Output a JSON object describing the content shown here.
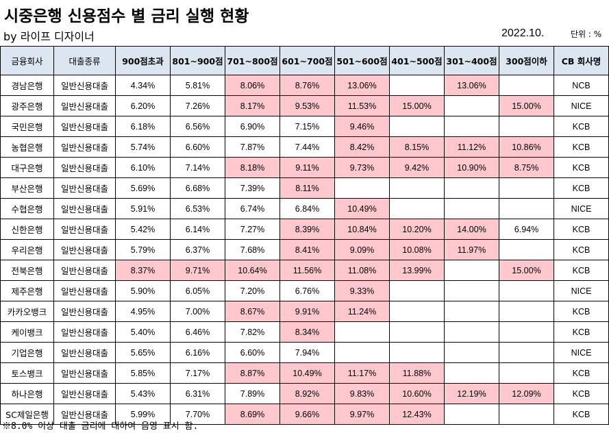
{
  "title": "시중은행 신용점수 별 금리 실행 현황",
  "byline": "by 라이프 디자이너",
  "date": "2022.10.",
  "unit": "단위 : %",
  "highlight_color": "#ffc7ce",
  "header_color": "#dce6f0",
  "columns": [
    "금융회사",
    "대출종류",
    "900점초과",
    "801~900점",
    "701~800점",
    "601~700점",
    "501~600점",
    "401~500점",
    "301~400점",
    "300점이하",
    "CB 회사명"
  ],
  "rows": [
    {
      "bank": "경남은행",
      "type": "일반신용대출",
      "rates": [
        "4.34%",
        "5.81%",
        "8.06%",
        "8.76%",
        "13.06%",
        "",
        "13.06%",
        ""
      ],
      "cb": "NCB"
    },
    {
      "bank": "광주은행",
      "type": "일반신용대출",
      "rates": [
        "6.20%",
        "7.26%",
        "8.17%",
        "9.53%",
        "11.53%",
        "15.00%",
        "",
        "15.00%"
      ],
      "cb": "NICE"
    },
    {
      "bank": "국민은행",
      "type": "일반신용대출",
      "rates": [
        "6.18%",
        "6.56%",
        "6.90%",
        "7.15%",
        "9.46%",
        "",
        "",
        ""
      ],
      "cb": "KCB"
    },
    {
      "bank": "농협은행",
      "type": "일반신용대출",
      "rates": [
        "5.74%",
        "6.60%",
        "7.87%",
        "7.44%",
        "8.42%",
        "8.15%",
        "11.12%",
        "10.86%"
      ],
      "cb": "KCB"
    },
    {
      "bank": "대구은행",
      "type": "일반신용대출",
      "rates": [
        "6.10%",
        "7.14%",
        "8.18%",
        "9.11%",
        "9.73%",
        "9.42%",
        "10.90%",
        "8.75%"
      ],
      "cb": "KCB"
    },
    {
      "bank": "부산은행",
      "type": "일반신용대출",
      "rates": [
        "5.69%",
        "6.68%",
        "7.39%",
        "8.11%",
        "",
        "",
        "",
        ""
      ],
      "cb": "KCB"
    },
    {
      "bank": "수협은행",
      "type": "일반신용대출",
      "rates": [
        "5.91%",
        "6.53%",
        "6.74%",
        "6.84%",
        "10.49%",
        "",
        "",
        ""
      ],
      "cb": "NICE"
    },
    {
      "bank": "신한은행",
      "type": "일반신용대출",
      "rates": [
        "5.42%",
        "6.14%",
        "7.27%",
        "8.39%",
        "10.84%",
        "10.20%",
        "14.00%",
        "6.94%"
      ],
      "cb": "KCB"
    },
    {
      "bank": "우리은행",
      "type": "일반신용대출",
      "rates": [
        "5.79%",
        "6.37%",
        "7.68%",
        "8.41%",
        "9.09%",
        "10.08%",
        "11.97%",
        ""
      ],
      "cb": "KCB"
    },
    {
      "bank": "전북은행",
      "type": "일반신용대출",
      "rates": [
        "8.37%",
        "9.71%",
        "10.64%",
        "11.56%",
        "11.08%",
        "13.99%",
        "",
        "15.00%"
      ],
      "cb": "KCB"
    },
    {
      "bank": "제주은행",
      "type": "일반신용대출",
      "rates": [
        "5.90%",
        "6.05%",
        "7.20%",
        "6.76%",
        "9.33%",
        "",
        "",
        ""
      ],
      "cb": "NICE"
    },
    {
      "bank": "카카오뱅크",
      "type": "일반신용대출",
      "rates": [
        "4.95%",
        "7.00%",
        "8.67%",
        "9.91%",
        "11.24%",
        "",
        "",
        ""
      ],
      "cb": "KCB"
    },
    {
      "bank": "케이뱅크",
      "type": "일반신용대출",
      "rates": [
        "5.40%",
        "6.46%",
        "7.82%",
        "8.34%",
        "",
        "",
        "",
        ""
      ],
      "cb": "KCB"
    },
    {
      "bank": "기업은행",
      "type": "일반신용대출",
      "rates": [
        "5.65%",
        "6.16%",
        "6.60%",
        "7.94%",
        "",
        "",
        "",
        ""
      ],
      "cb": "NICE"
    },
    {
      "bank": "토스뱅크",
      "type": "일반신용대출",
      "rates": [
        "5.85%",
        "7.17%",
        "8.87%",
        "10.49%",
        "11.17%",
        "11.88%",
        "",
        ""
      ],
      "cb": "KCB"
    },
    {
      "bank": "하나은행",
      "type": "일반신용대출",
      "rates": [
        "5.43%",
        "6.31%",
        "7.89%",
        "8.92%",
        "9.83%",
        "10.60%",
        "12.19%",
        "12.09%"
      ],
      "cb": "KCB"
    },
    {
      "bank": "SC제일은행",
      "type": "일반신용대출",
      "rates": [
        "5.99%",
        "7.70%",
        "8.69%",
        "9.66%",
        "9.97%",
        "12.43%",
        "",
        ""
      ],
      "cb": "KCB"
    }
  ],
  "footnote": "※8.0% 이상 대출 금리에 대하여 음영 표시 함."
}
